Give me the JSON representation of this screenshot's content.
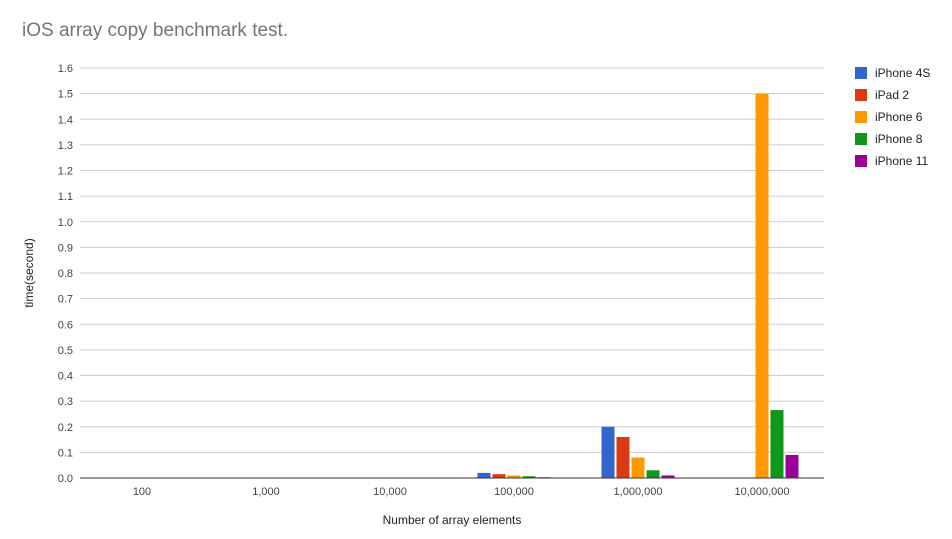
{
  "chart_data": {
    "type": "bar",
    "title": "iOS array copy benchmark test.",
    "xlabel": "Number of array elements",
    "ylabel": "time(second)",
    "ylim": [
      0,
      1.6
    ],
    "yticks": [
      "0.0",
      "0.1",
      "0.2",
      "0.3",
      "0.4",
      "0.5",
      "0.6",
      "0.7",
      "0.8",
      "0.9",
      "1.0",
      "1.1",
      "1.2",
      "1.3",
      "1.4",
      "1.5",
      "1.6"
    ],
    "grid": true,
    "legend_position": "right",
    "categories": [
      "100",
      "1,000",
      "10,000",
      "100,000",
      "1,000,000",
      "10,000,000"
    ],
    "series": [
      {
        "name": "iPhone 4S",
        "color": "#3366cc",
        "values": [
          0,
          0,
          0,
          0.02,
          0.2,
          0
        ]
      },
      {
        "name": "iPad 2",
        "color": "#dc3912",
        "values": [
          0,
          0,
          0,
          0.015,
          0.16,
          0
        ]
      },
      {
        "name": "iPhone 6",
        "color": "#ff9900",
        "values": [
          0,
          0,
          0,
          0.01,
          0.08,
          1.5
        ]
      },
      {
        "name": "iPhone 8",
        "color": "#109618",
        "values": [
          0,
          0,
          0,
          0.007,
          0.03,
          0.265
        ]
      },
      {
        "name": "iPhone 11",
        "color": "#990099",
        "values": [
          0,
          0,
          0,
          0.003,
          0.01,
          0.09
        ]
      }
    ]
  }
}
